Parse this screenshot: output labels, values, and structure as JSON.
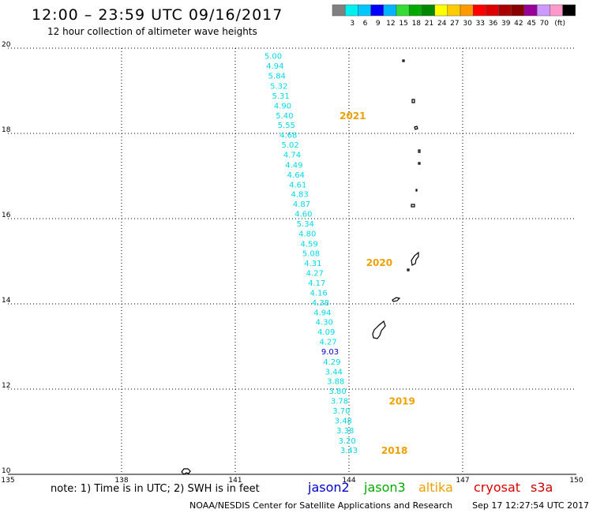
{
  "header": {
    "title": "12:00 – 23:59 UTC 09/16/2017",
    "subtitle": "12 hour collection of altimeter wave heights"
  },
  "colorbar": {
    "swatches": [
      "#808080",
      "#00f0f0",
      "#00c8ff",
      "#0000ff",
      "#00b4ff",
      "#33dd33",
      "#00aa00",
      "#008800",
      "#ffff00",
      "#ffcc00",
      "#ff9900",
      "#ff0000",
      "#dd0000",
      "#aa0000",
      "#880000",
      "#990099",
      "#cc99ff",
      "#ff99cc",
      "#000000"
    ],
    "labels": [
      "3",
      "6",
      "9",
      "12",
      "15",
      "18",
      "21",
      "24",
      "27",
      "30",
      "33",
      "36",
      "39",
      "42",
      "45",
      "70"
    ],
    "unit": "(ft)"
  },
  "map": {
    "y_axis": [
      "20",
      "18",
      "16",
      "14",
      "12",
      "10"
    ],
    "x_axis": [
      "135",
      "138",
      "141",
      "144",
      "147",
      "150"
    ],
    "wave_heights": [
      {
        "value": "5.00",
        "lat": 19.82,
        "lon": 142.0
      },
      {
        "value": "4.94",
        "lat": 19.59,
        "lon": 142.05
      },
      {
        "value": "5.84",
        "lat": 19.36,
        "lon": 142.1
      },
      {
        "value": "5.32",
        "lat": 19.12,
        "lon": 142.15
      },
      {
        "value": "5.31",
        "lat": 18.89,
        "lon": 142.2
      },
      {
        "value": "4.90",
        "lat": 18.66,
        "lon": 142.25
      },
      {
        "value": "5.40",
        "lat": 18.43,
        "lon": 142.3
      },
      {
        "value": "5.55",
        "lat": 18.2,
        "lon": 142.35
      },
      {
        "value": "4.68",
        "lat": 17.97,
        "lon": 142.4
      },
      {
        "value": "5.02",
        "lat": 17.74,
        "lon": 142.45
      },
      {
        "value": "4.74",
        "lat": 17.51,
        "lon": 142.5
      },
      {
        "value": "4.49",
        "lat": 17.27,
        "lon": 142.55
      },
      {
        "value": "4.64",
        "lat": 17.04,
        "lon": 142.6
      },
      {
        "value": "4.61",
        "lat": 16.81,
        "lon": 142.65
      },
      {
        "value": "4.83",
        "lat": 16.58,
        "lon": 142.7
      },
      {
        "value": "4.87",
        "lat": 16.35,
        "lon": 142.75
      },
      {
        "value": "4.60",
        "lat": 16.12,
        "lon": 142.8
      },
      {
        "value": "5.34",
        "lat": 15.89,
        "lon": 142.85
      },
      {
        "value": "4.80",
        "lat": 15.66,
        "lon": 142.9
      },
      {
        "value": "4.59",
        "lat": 15.42,
        "lon": 142.95
      },
      {
        "value": "5.08",
        "lat": 15.19,
        "lon": 143.0
      },
      {
        "value": "4.31",
        "lat": 14.96,
        "lon": 143.05
      },
      {
        "value": "4.27",
        "lat": 14.73,
        "lon": 143.1
      },
      {
        "value": "4.17",
        "lat": 14.5,
        "lon": 143.15
      },
      {
        "value": "4.16",
        "lat": 14.27,
        "lon": 143.2
      },
      {
        "value": "4.38",
        "lat": 14.04,
        "lon": 143.25
      },
      {
        "value": "4.94",
        "lat": 13.81,
        "lon": 143.3
      },
      {
        "value": "4.30",
        "lat": 13.58,
        "lon": 143.35
      },
      {
        "value": "4.09",
        "lat": 13.35,
        "lon": 143.4
      },
      {
        "value": "4.27",
        "lat": 13.12,
        "lon": 143.45
      },
      {
        "value": "9.03",
        "lat": 12.89,
        "lon": 143.5,
        "color": "#0000cc"
      },
      {
        "value": "4.29",
        "lat": 12.65,
        "lon": 143.55
      },
      {
        "value": "3.44",
        "lat": 12.42,
        "lon": 143.6
      },
      {
        "value": "3.88",
        "lat": 12.19,
        "lon": 143.65
      },
      {
        "value": "3.80",
        "lat": 11.96,
        "lon": 143.7
      },
      {
        "value": "3.78",
        "lat": 11.73,
        "lon": 143.75
      },
      {
        "value": "3.70",
        "lat": 11.5,
        "lon": 143.8
      },
      {
        "value": "3.48",
        "lat": 11.27,
        "lon": 143.85
      },
      {
        "value": "3.38",
        "lat": 11.04,
        "lon": 143.9
      },
      {
        "value": "3.20",
        "lat": 10.8,
        "lon": 143.95
      },
      {
        "value": "3.43",
        "lat": 10.57,
        "lon": 144.0
      }
    ],
    "pass_labels": [
      {
        "text": "2021",
        "lat": 18.43,
        "lon": 144.1
      },
      {
        "text": "2020",
        "lat": 14.98,
        "lon": 144.8
      },
      {
        "text": "2019",
        "lat": 11.73,
        "lon": 145.4
      },
      {
        "text": "2018",
        "lat": 10.57,
        "lon": 145.2
      }
    ]
  },
  "note": "note: 1) Time is in UTC; 2) SWH is in feet",
  "satellites": [
    {
      "name": "jason2",
      "color": "#0000cc"
    },
    {
      "name": "jason3",
      "color": "#00aa00"
    },
    {
      "name": "altika",
      "color": "#f0a000"
    },
    {
      "name": "cryosat",
      "color": "#dd0000"
    },
    {
      "name": "s3a",
      "color": "#cc0000"
    }
  ],
  "footer": {
    "credit": "NOAA/NESDIS Center for Satellite Applications and Research",
    "timestamp": "Sep 17 12:27:54 UTC 2017"
  },
  "colors": {
    "track": "#00d8e8",
    "pass_label": "#f0a000",
    "grid": "#000000"
  }
}
